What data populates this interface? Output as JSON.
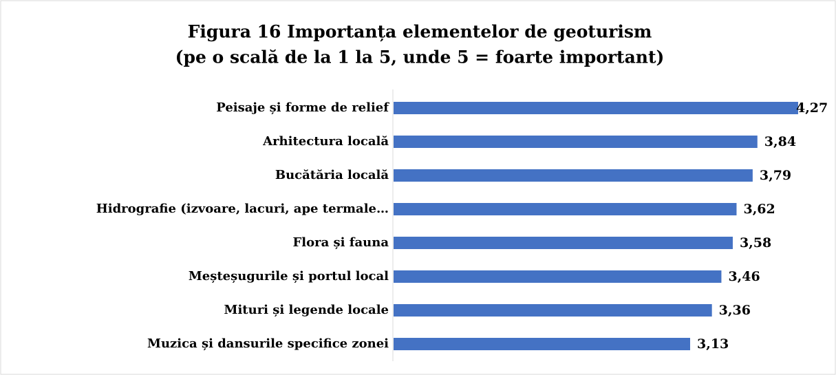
{
  "chart_data": {
    "type": "bar",
    "orientation": "horizontal",
    "title": [
      "Figura 16 Importanța elementelor de geoturism",
      "(pe o scală de la 1 la 5, unde 5 = foarte important)"
    ],
    "categories": [
      "Peisaje și forme de relief",
      "Arhitectura locală",
      "Bucătăria locală",
      "Hidrografie (izvoare, lacuri, ape termale…",
      "Flora și fauna",
      "Meșteșugurile și portul local",
      "Mituri și legende locale",
      "Muzica și dansurile specifice zonei"
    ],
    "values": [
      4.27,
      3.84,
      3.79,
      3.62,
      3.58,
      3.46,
      3.36,
      3.13
    ],
    "value_labels": [
      "4,27",
      "3,84",
      "3,79",
      "3,62",
      "3,58",
      "3,46",
      "3,36",
      "3,13"
    ],
    "color": "#4472c4"
  }
}
